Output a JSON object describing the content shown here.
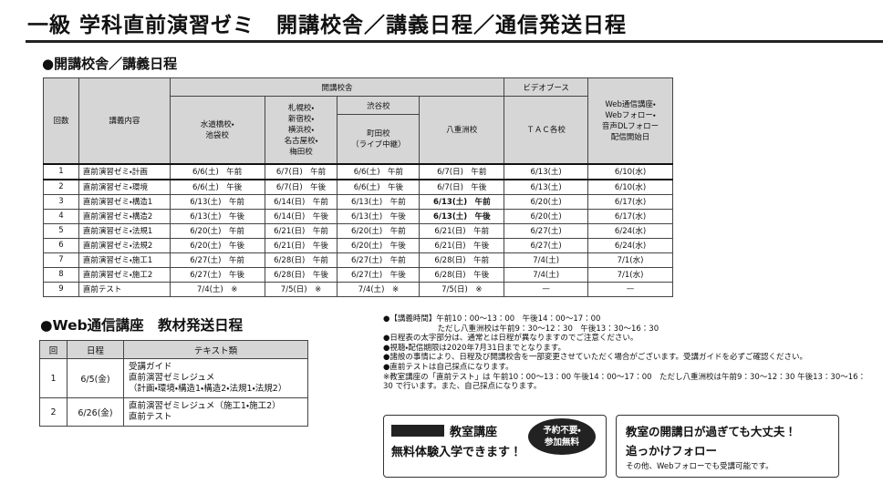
{
  "header": {
    "title": "一級 学科直前演習ゼミ　開講校舎／講義日程／通信発送日程"
  },
  "schedule": {
    "heading": "●開講校舎／講義日程",
    "head": {
      "no": "回数",
      "content": "講義内容",
      "campus": "開講校舎",
      "c1": [
        "水道橋校・",
        "池袋校"
      ],
      "c2": [
        "札幌校・",
        "新宿校・",
        "横浜校・",
        "名古屋校・",
        "梅田校"
      ],
      "c3a": "渋谷校",
      "c3b": [
        "町田校",
        "（ライブ中継）"
      ],
      "c4": "八重洲校",
      "video": "ビデオブース",
      "tac": "ＴＡＣ各校",
      "web": [
        "Web通信講座・",
        "Webフォロー・",
        "音声DLフォロー",
        "配信開始日"
      ]
    },
    "rows": [
      [
        "1",
        "直前演習ゼミ・計画",
        "6/6(土)　午前",
        "6/7(日)　午前",
        "6/6(土)　午前",
        "6/7(日)　午前",
        "6/13(土)",
        "6/10(水)"
      ],
      [
        "2",
        "直前演習ゼミ・環境",
        "6/6(土)　午後",
        "6/7(日)　午後",
        "6/6(土)　午後",
        "6/7(日)　午後",
        "6/13(土)",
        "6/10(水)"
      ],
      [
        "3",
        "直前演習ゼミ・構造1",
        "6/13(土)　午前",
        "6/14(日)　午前",
        "6/13(土)　午前",
        "6/13(土)　午前",
        "6/20(土)",
        "6/17(水)"
      ],
      [
        "4",
        "直前演習ゼミ・構造2",
        "6/13(土)　午後",
        "6/14(日)　午後",
        "6/13(土)　午後",
        "6/13(土)　午後",
        "6/20(土)",
        "6/17(水)"
      ],
      [
        "5",
        "直前演習ゼミ・法規1",
        "6/20(土)　午前",
        "6/21(日)　午前",
        "6/20(土)　午前",
        "6/21(日)　午前",
        "6/27(土)",
        "6/24(水)"
      ],
      [
        "6",
        "直前演習ゼミ・法規2",
        "6/20(土)　午後",
        "6/21(日)　午後",
        "6/20(土)　午後",
        "6/21(日)　午後",
        "6/27(土)",
        "6/24(水)"
      ],
      [
        "7",
        "直前演習ゼミ・施工1",
        "6/27(土)　午前",
        "6/28(日)　午前",
        "6/27(土)　午前",
        "6/28(日)　午前",
        "7/4(土)",
        "7/1(水)"
      ],
      [
        "8",
        "直前演習ゼミ・施工2",
        "6/27(土)　午後",
        "6/28(日)　午後",
        "6/27(土)　午後",
        "6/28(日)　午後",
        "7/4(土)",
        "7/1(水)"
      ],
      [
        "9",
        "直前テスト",
        "7/4(土)　※",
        "7/5(日)　※",
        "7/4(土)　※",
        "7/5(日)　※",
        "—",
        "—"
      ]
    ]
  },
  "shipping": {
    "heading": "●Web通信講座　教材発送日程",
    "head": [
      "回",
      "日程",
      "テキスト類"
    ],
    "rows": [
      {
        "no": "1",
        "date": "6/5(金)",
        "texts": [
          "受講ガイド",
          "直前演習ゼミレジュメ",
          "（計画・環境・構造1・構造2・法規1・法規2）"
        ]
      },
      {
        "no": "2",
        "date": "6/26(金)",
        "texts": [
          "直前演習ゼミレジュメ（施工1・施工2）",
          "直前テスト"
        ]
      }
    ]
  },
  "notes": [
    "●【講義時間】午前10：00～13：00　午後14：00～17：00",
    "　　　　　　　ただし八重洲校は午前9：30～12：30　午後13：30～16：30",
    "●日程表の太字部分は、通常とは日程が異なりますのでご注意ください。",
    "●視聴・配信期限は2020年7月31日までとなります。",
    "●諸般の事情により、日程及び開講校舎を一部変更させていただく場合がございます。受講ガイドを必ずご確認ください。",
    "●直前テストは自己採点になります。",
    "※教室講座の「直前テスト」は 午前10：00～13：00 午後14：00～17：00　ただし八重洲校は午前9：30～12：30 午後13：30～16：30 で行います。また、自己採点になります。"
  ],
  "promo1": {
    "label": "教室講座",
    "text": "無料体験入学できます！",
    "badge": [
      "予約不要・",
      "参加無料"
    ]
  },
  "promo2": {
    "title": "教室の開講日が過ぎても大丈夫！",
    "subtitle": "追っかけフォロー",
    "text": "その他、Webフォローでも受講可能です。"
  }
}
